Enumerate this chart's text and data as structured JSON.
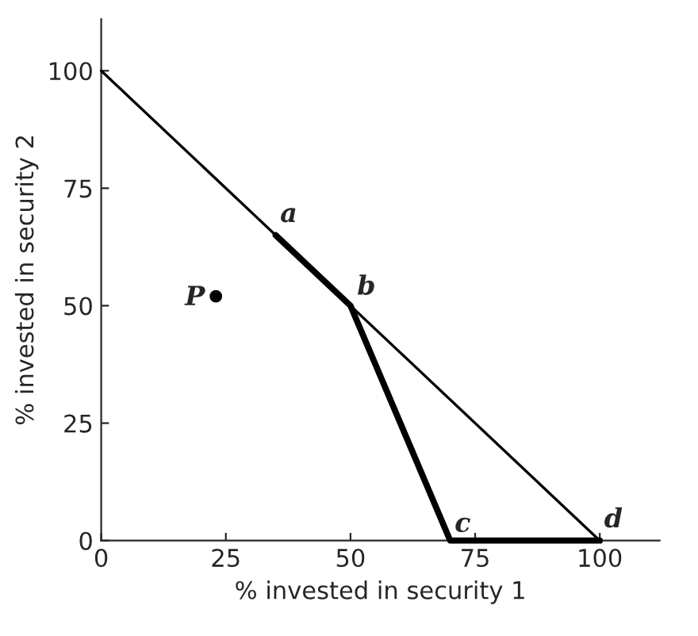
{
  "chart_data": {
    "type": "line",
    "xlabel": "% invested in security 1",
    "ylabel": "% invested in security 2",
    "xlim": [
      0,
      112
    ],
    "ylim": [
      0,
      111
    ],
    "xticks": [
      0,
      25,
      50,
      75,
      100
    ],
    "yticks": [
      0,
      25,
      50,
      75,
      100
    ],
    "grid": false,
    "line_style": "solid",
    "series": [
      {
        "color": "#000000",
        "x": [
          0,
          100
        ],
        "values": [
          100,
          0
        ]
      },
      {
        "color": "#000000",
        "x": [
          35,
          50,
          70,
          100
        ],
        "values": [
          65,
          50,
          0,
          0
        ]
      },
      {
        "type": "scatter",
        "marker": "circle",
        "color": "#000000",
        "x": [
          23
        ],
        "values": [
          52
        ]
      }
    ],
    "annotations": [
      {
        "text": "a",
        "x": 35,
        "y": 65
      },
      {
        "text": "b",
        "x": 50,
        "y": 50
      },
      {
        "text": "c",
        "x": 70,
        "y": 0
      },
      {
        "text": "d",
        "x": 100,
        "y": 0
      },
      {
        "text": "P",
        "x": 23,
        "y": 52
      }
    ]
  }
}
